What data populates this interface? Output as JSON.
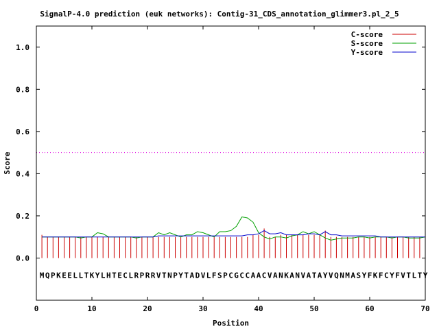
{
  "chart_data": {
    "type": "line",
    "title": "SignalP-4.0 prediction (euk networks): Contig-31_CDS_annotation_glimmer3.pl_2_5",
    "xlabel": "Position",
    "ylabel": "Score",
    "xlim": [
      0,
      70
    ],
    "ylim": [
      -0.2,
      1.1
    ],
    "xticks": [
      "0",
      "10",
      "20",
      "30",
      "40",
      "50",
      "60",
      "70"
    ],
    "yticks": [
      "0.0",
      "0.2",
      "0.4",
      "0.6",
      "0.8",
      "1.0"
    ],
    "threshold": 0.5,
    "legend_position": "top-right",
    "sequence": "MQPKEELLTKYLHTECLRPRRVTNPYTADVLFSPCGCCAACVANKANVATAYVQNMASYFKFCYFVTLTY",
    "series": [
      {
        "name": "C-score",
        "color": "#cc0000",
        "style": "impulses",
        "values": [
          0.11,
          0.1,
          0.1,
          0.1,
          0.1,
          0.1,
          0.1,
          0.1,
          0.1,
          0.1,
          0.1,
          0.1,
          0.1,
          0.1,
          0.1,
          0.1,
          0.1,
          0.1,
          0.1,
          0.1,
          0.1,
          0.1,
          0.1,
          0.1,
          0.1,
          0.1,
          0.1,
          0.1,
          0.1,
          0.1,
          0.1,
          0.1,
          0.1,
          0.1,
          0.1,
          0.1,
          0.1,
          0.1,
          0.11,
          0.11,
          0.14,
          0.1,
          0.1,
          0.11,
          0.11,
          0.11,
          0.11,
          0.11,
          0.11,
          0.11,
          0.11,
          0.13,
          0.1,
          0.1,
          0.1,
          0.1,
          0.1,
          0.1,
          0.1,
          0.1,
          0.1,
          0.1,
          0.1,
          0.1,
          0.1,
          0.1,
          0.1,
          0.1,
          0.1,
          0.1
        ]
      },
      {
        "name": "S-score",
        "color": "#00a000",
        "style": "line",
        "values": [
          0.1,
          0.1,
          0.1,
          0.1,
          0.1,
          0.1,
          0.1,
          0.095,
          0.1,
          0.1,
          0.12,
          0.115,
          0.1,
          0.1,
          0.1,
          0.1,
          0.1,
          0.095,
          0.1,
          0.1,
          0.1,
          0.12,
          0.11,
          0.12,
          0.11,
          0.1,
          0.11,
          0.11,
          0.125,
          0.12,
          0.11,
          0.1,
          0.125,
          0.125,
          0.13,
          0.15,
          0.195,
          0.19,
          0.17,
          0.12,
          0.1,
          0.09,
          0.1,
          0.1,
          0.095,
          0.105,
          0.11,
          0.125,
          0.115,
          0.125,
          0.11,
          0.095,
          0.085,
          0.09,
          0.095,
          0.095,
          0.095,
          0.1,
          0.1,
          0.095,
          0.1,
          0.1,
          0.1,
          0.095,
          0.1,
          0.1,
          0.095,
          0.095,
          0.095,
          0.1
        ]
      },
      {
        "name": "Y-score",
        "color": "#0000cc",
        "style": "line",
        "values": [
          0.1,
          0.1,
          0.1,
          0.1,
          0.1,
          0.1,
          0.1,
          0.1,
          0.1,
          0.1,
          0.1,
          0.1,
          0.1,
          0.1,
          0.1,
          0.1,
          0.1,
          0.1,
          0.1,
          0.1,
          0.1,
          0.105,
          0.105,
          0.105,
          0.105,
          0.105,
          0.105,
          0.105,
          0.105,
          0.105,
          0.105,
          0.105,
          0.105,
          0.105,
          0.105,
          0.105,
          0.105,
          0.11,
          0.11,
          0.115,
          0.13,
          0.115,
          0.115,
          0.12,
          0.11,
          0.11,
          0.11,
          0.11,
          0.115,
          0.115,
          0.11,
          0.125,
          0.11,
          0.11,
          0.105,
          0.105,
          0.105,
          0.105,
          0.105,
          0.105,
          0.105,
          0.1,
          0.1,
          0.1,
          0.1,
          0.1,
          0.1,
          0.1,
          0.1,
          0.1
        ]
      }
    ]
  }
}
